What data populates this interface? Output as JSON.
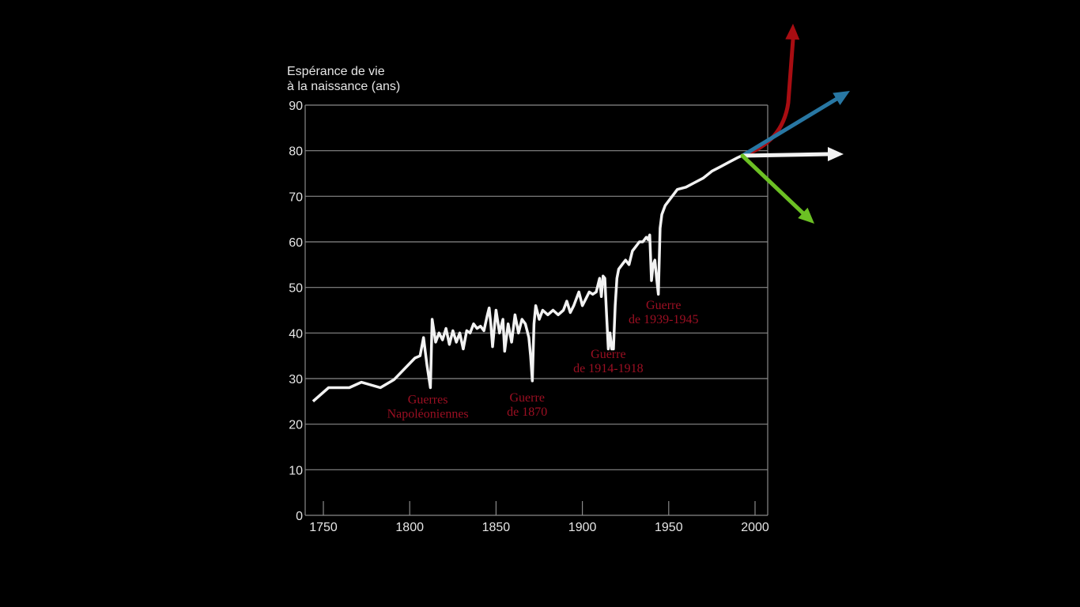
{
  "chart_data": {
    "type": "line",
    "title": "",
    "ylabel": [
      "Espérance de vie",
      "à la naissance (ans)"
    ],
    "xlabel": "",
    "xlim": [
      1739.5,
      2007
    ],
    "ylim": [
      0,
      90
    ],
    "grid": true,
    "x_ticks": [
      1750,
      1800,
      1850,
      1900,
      1950,
      2000
    ],
    "y_ticks": [
      0,
      10,
      20,
      30,
      40,
      50,
      60,
      70,
      80,
      90
    ],
    "series": [
      {
        "name": "Espérance de vie",
        "color": "#f2f2f2",
        "x": [
          1744,
          1753,
          1765,
          1772,
          1783,
          1791,
          1803,
          1806,
          1808,
          1810,
          1812,
          1813,
          1815,
          1817,
          1819,
          1821,
          1823,
          1825,
          1827,
          1829,
          1831,
          1833,
          1835,
          1837,
          1839,
          1841,
          1843,
          1845,
          1846,
          1847,
          1848,
          1850,
          1852,
          1854,
          1855,
          1857,
          1859,
          1861,
          1863,
          1865,
          1867,
          1869,
          1870,
          1871,
          1872,
          1873,
          1875,
          1877,
          1880,
          1883,
          1886,
          1889,
          1891,
          1893,
          1895,
          1897,
          1898,
          1900,
          1902,
          1904,
          1906,
          1908,
          1910,
          1911,
          1912,
          1913,
          1914,
          1915,
          1916,
          1917,
          1918,
          1919,
          1920,
          1921,
          1923,
          1925,
          1927,
          1929,
          1931,
          1933,
          1935,
          1937,
          1938,
          1939,
          1940,
          1941,
          1942,
          1943,
          1944,
          1945,
          1946,
          1948,
          1952,
          1955,
          1960,
          1965,
          1970,
          1975,
          1980,
          1985,
          1990,
          1993
        ],
        "y": [
          25,
          28,
          28,
          29.2,
          28,
          29.8,
          34.5,
          35,
          39,
          33,
          28,
          43,
          38,
          40,
          38.5,
          41,
          37.5,
          40.5,
          38,
          40,
          36.5,
          40.5,
          40,
          42,
          41,
          41.5,
          40.5,
          44,
          45.5,
          42,
          37,
          45,
          40,
          43,
          36,
          42,
          38,
          44,
          40,
          43,
          42,
          39,
          35,
          29.5,
          42,
          46,
          43,
          45,
          44,
          45,
          44,
          45,
          47,
          44.5,
          46,
          48,
          49,
          46,
          47.5,
          49,
          48.5,
          49,
          52,
          48,
          52.5,
          52,
          44,
          36.5,
          40,
          36.5,
          36.5,
          46,
          52,
          54,
          55,
          56,
          55,
          58,
          59,
          60,
          60,
          61,
          60.5,
          61.5,
          51.5,
          55,
          56,
          52,
          48.5,
          63,
          66,
          68,
          70,
          71.5,
          72,
          73,
          74,
          75.5,
          76.5,
          77.5,
          78.5,
          79
        ]
      }
    ],
    "annotations": [
      {
        "lines": [
          "Guerres",
          "Napoléoniennes"
        ],
        "year": 1810.5,
        "value": 24.5
      },
      {
        "lines": [
          "Guerre",
          "de 1870"
        ],
        "year": 1868,
        "value": 25
      },
      {
        "lines": [
          "Guerre",
          "de 1914-1918"
        ],
        "year": 1915,
        "value": 34.5
      },
      {
        "lines": [
          "Guerre",
          "de 1939-1945"
        ],
        "year": 1947,
        "value": 45.3
      }
    ],
    "projection_arrows": [
      {
        "name": "red-projection-arrow",
        "color": "#a80d12"
      },
      {
        "name": "blue-projection-arrow",
        "color": "#2877a3"
      },
      {
        "name": "white-projection-arrow",
        "color": "#f2f2f2"
      },
      {
        "name": "green-projection-arrow",
        "color": "#6cc024"
      }
    ]
  }
}
